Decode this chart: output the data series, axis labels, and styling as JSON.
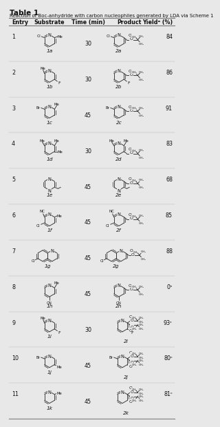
{
  "title": "Table 1",
  "subtitle": "Reaction of Boc-anhydride with carbon nucleophiles generated by LDA via Scheme 1",
  "headers": [
    "Entry",
    "Substrate",
    "Time (min)",
    "Product",
    "Yieldᵃ (%)"
  ],
  "rows": [
    {
      "entry": "1",
      "sub": "1a",
      "time": "30",
      "prod": "2a",
      "yield": "84"
    },
    {
      "entry": "2",
      "sub": "1b",
      "time": "30",
      "prod": "2b",
      "yield": "86"
    },
    {
      "entry": "3",
      "sub": "1c",
      "time": "45",
      "prod": "2c",
      "yield": "91"
    },
    {
      "entry": "4",
      "sub": "1d",
      "time": "30",
      "prod": "2d",
      "yield": "83"
    },
    {
      "entry": "5",
      "sub": "1e",
      "time": "45",
      "prod": "2e",
      "yield": "68"
    },
    {
      "entry": "6",
      "sub": "1f",
      "time": "45",
      "prod": "2f",
      "yield": "85"
    },
    {
      "entry": "7",
      "sub": "1g",
      "time": "45",
      "prod": "2g",
      "yield": "88"
    },
    {
      "entry": "8",
      "sub": "1h",
      "time": "45",
      "prod": "2h",
      "yield": "0ᵇ"
    },
    {
      "entry": "9",
      "sub": "1i",
      "time": "30",
      "prod": "2i",
      "yield": "93ᶜ"
    },
    {
      "entry": "10",
      "sub": "1j",
      "time": "45",
      "prod": "2j",
      "yield": "80ᶜ"
    },
    {
      "entry": "11",
      "sub": "1k",
      "time": "45",
      "prod": "2k",
      "yield": "81ᶜ"
    }
  ],
  "bg": "#e8e8e8",
  "mc": "#333333",
  "tc": "#111111"
}
